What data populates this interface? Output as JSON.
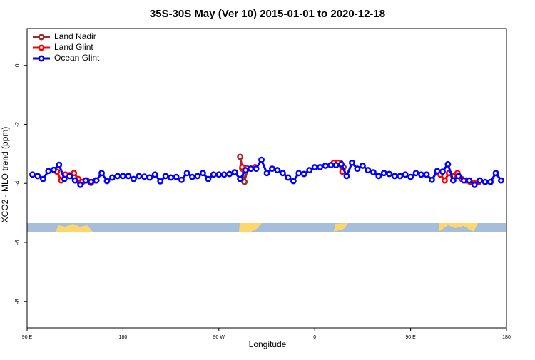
{
  "chart_data": {
    "type": "line",
    "title": "35S-30S May (Ver 10)   2015-01-01 to 2020-12-18",
    "x_label": "Longitude",
    "y_label": "XCO2 - MLO trend (ppm)",
    "xlim": [
      90,
      540
    ],
    "ylim": [
      -8.9,
      1.25
    ],
    "xticks": [
      {
        "value": 90,
        "label": "90 E"
      },
      {
        "value": 180,
        "label": "180"
      },
      {
        "value": 270,
        "label": "90 W"
      },
      {
        "value": 360,
        "label": "0"
      },
      {
        "value": 450,
        "label": "90 E"
      },
      {
        "value": 540,
        "label": "180"
      }
    ],
    "yticks": [
      0,
      -2,
      -4,
      -6,
      -8
    ],
    "legend": "top-left",
    "series": [
      {
        "name": "Land Nadir",
        "color": "#a52a2a",
        "x": [
          290,
          292,
          294,
          297,
          340,
          384,
          387
        ],
        "values": [
          -3.1,
          -3.5,
          -3.95,
          -3.5,
          null,
          -3.3,
          -3.45
        ]
      },
      {
        "name": "Land Glint",
        "color": "#ff0000",
        "x": [
          118,
          122,
          126,
          130,
          134,
          138,
          142,
          146,
          150,
          154,
          200,
          292,
          296,
          300,
          304,
          340,
          378,
          382,
          386,
          440,
          478,
          482,
          486,
          490,
          494,
          498,
          502,
          506,
          510,
          514
        ],
        "values": [
          -3.6,
          -3.9,
          -3.7,
          -3.72,
          -3.65,
          -3.85,
          -3.95,
          -3.9,
          -3.98,
          -3.9,
          null,
          -3.45,
          -3.48,
          -3.5,
          -3.45,
          null,
          -3.3,
          -3.3,
          -3.6,
          null,
          -3.7,
          -3.9,
          -3.65,
          -3.75,
          -3.65,
          -3.85,
          -3.9,
          -3.95,
          -4.0,
          -3.95
        ]
      },
      {
        "name": "Ocean Glint",
        "color": "#0000ff",
        "x": [
          95,
          100,
          105,
          110,
          115,
          120,
          125,
          130,
          135,
          140,
          145,
          150,
          155,
          160,
          165,
          170,
          175,
          180,
          185,
          190,
          195,
          200,
          205,
          210,
          215,
          220,
          225,
          230,
          235,
          240,
          245,
          250,
          255,
          260,
          265,
          270,
          275,
          280,
          285,
          290,
          295,
          300,
          305,
          310,
          315,
          320,
          325,
          330,
          335,
          340,
          345,
          350,
          355,
          360,
          365,
          370,
          375,
          380,
          385,
          390,
          395,
          400,
          405,
          410,
          415,
          420,
          425,
          430,
          435,
          440,
          445,
          450,
          455,
          460,
          465,
          470,
          475,
          480,
          485,
          490,
          495,
          500,
          505,
          510,
          515,
          520,
          525,
          530,
          535
        ],
        "values": [
          -3.7,
          -3.75,
          -3.85,
          -3.58,
          -3.54,
          -3.37,
          -3.85,
          -3.75,
          -3.9,
          -4.05,
          -3.9,
          -3.95,
          -3.9,
          -3.65,
          -3.92,
          -3.8,
          -3.75,
          -3.75,
          -3.75,
          -3.85,
          -3.75,
          -3.77,
          -3.8,
          -3.7,
          -3.93,
          -3.75,
          -3.8,
          -3.78,
          -3.88,
          -3.65,
          -3.78,
          -3.75,
          -3.65,
          -3.85,
          -3.7,
          -3.7,
          -3.7,
          -3.68,
          -3.62,
          -3.85,
          -3.55,
          -3.5,
          -3.5,
          -3.2,
          -3.65,
          -3.5,
          -3.55,
          -3.65,
          -3.8,
          -3.92,
          -3.65,
          -3.68,
          -3.55,
          -3.45,
          -3.45,
          -3.4,
          -3.38,
          -3.38,
          -3.35,
          -3.75,
          -3.3,
          -3.5,
          -3.4,
          -3.55,
          -3.62,
          -3.75,
          -3.65,
          -3.68,
          -3.75,
          -3.75,
          -3.7,
          -3.78,
          -3.65,
          -3.7,
          -3.7,
          -3.88,
          -3.58,
          -3.6,
          -3.35,
          -3.9,
          -3.75,
          -3.9,
          -3.9,
          -4.05,
          -3.9,
          -3.95,
          -3.95,
          -3.65,
          -3.9
        ]
      }
    ]
  }
}
